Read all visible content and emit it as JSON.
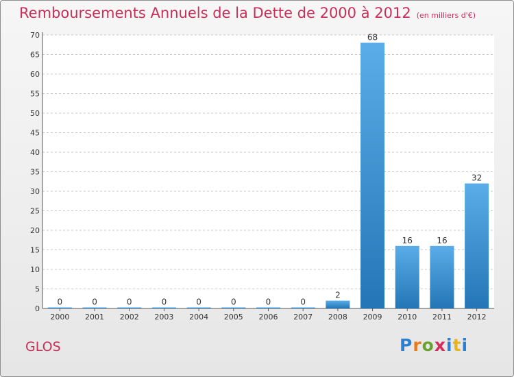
{
  "chart_data": {
    "type": "bar",
    "title": "Remboursements Annuels de la Dette de 2000 à 2012",
    "subtitle": "(en milliers d'€)",
    "categories": [
      "2000",
      "2001",
      "2002",
      "2003",
      "2004",
      "2005",
      "2006",
      "2007",
      "2008",
      "2009",
      "2010",
      "2011",
      "2012"
    ],
    "values": [
      0,
      0,
      0,
      0,
      0,
      0,
      0,
      0,
      2,
      68,
      16,
      16,
      32
    ],
    "ylim": [
      0,
      70
    ],
    "yticks": [
      0,
      5,
      10,
      15,
      20,
      25,
      30,
      35,
      40,
      45,
      50,
      55,
      60,
      65,
      70
    ],
    "grid": "horizontal dashed",
    "colors": {
      "bar_top": "#5aade8",
      "bar_bottom": "#2475b5",
      "title": "#c8305a"
    }
  },
  "commune": "GLOS",
  "logo": {
    "text": "Proxiti",
    "letter_colors": [
      "#2a7fd4",
      "#e87a1c",
      "#6aa32c",
      "#d42c5a",
      "#2a7fd4",
      "#e8b41c",
      "#2a7fd4"
    ]
  }
}
